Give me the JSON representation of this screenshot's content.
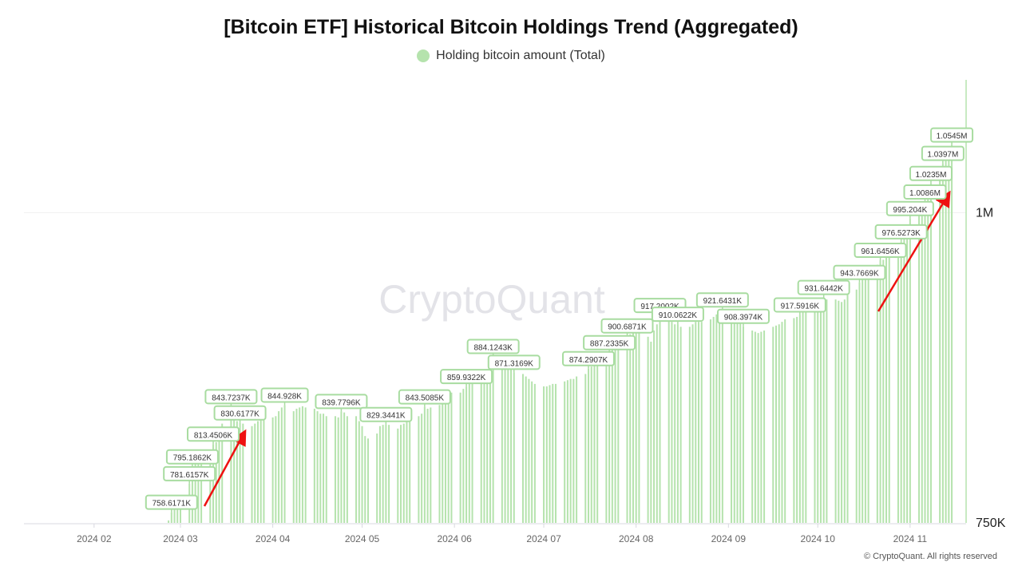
{
  "chart_data": {
    "type": "bar",
    "title": "[Bitcoin ETF] Historical Bitcoin Holdings Trend (Aggregated)",
    "legend": [
      {
        "name": "Holding bitcoin amount (Total)",
        "color": "#b5e3ad"
      }
    ],
    "legend_placement": "top-center",
    "xlabel": "",
    "ylabel": "",
    "x_start_date": "2024-02-26",
    "x_frequency": "weekdays",
    "x_ticks": [
      "2024 02",
      "2024 03",
      "2024 04",
      "2024 05",
      "2024 06",
      "2024 07",
      "2024 08",
      "2024 09",
      "2024 10",
      "2024 11"
    ],
    "y_ticks": [
      {
        "value": 750,
        "label": "750K"
      },
      {
        "value": 1000,
        "label": "1M"
      }
    ],
    "y_unit": "K BTC",
    "ylim": [
      750,
      1107
    ],
    "grid": "horizontal at 1M",
    "values": [
      752,
      758.6,
      766,
      770,
      772,
      781.6,
      795.2,
      798,
      800,
      805,
      808,
      813.5,
      815,
      818,
      830,
      843.7,
      835,
      832,
      830.6,
      830,
      828,
      830,
      832,
      833,
      833,
      835,
      836,
      840,
      843,
      844.9,
      840,
      842,
      843,
      844,
      843,
      842,
      840,
      838,
      838,
      836,
      836,
      835,
      839.8,
      839,
      836,
      836,
      832,
      828,
      820,
      818,
      822,
      828,
      829,
      829.3,
      829,
      826,
      829,
      830,
      832,
      833,
      836,
      838,
      843.5,
      842,
      843,
      845,
      848,
      850,
      852,
      855,
      855,
      858,
      859.9,
      862,
      864,
      866,
      870,
      874,
      880,
      884.1,
      882,
      880,
      878,
      876,
      871.3,
      870,
      868,
      866,
      864,
      862,
      860,
      860,
      861,
      862,
      862,
      864,
      865,
      866,
      866,
      868,
      870,
      874.3,
      876,
      878,
      880,
      882,
      887.2,
      890,
      895,
      898,
      900.7,
      902,
      904,
      905,
      906,
      900,
      896,
      905,
      910,
      917.2,
      914,
      912,
      910,
      910.1,
      908,
      908,
      910,
      912,
      912,
      912,
      914,
      916,
      918,
      920,
      921.6,
      920,
      918,
      916,
      912,
      908.4,
      905,
      904,
      903,
      904,
      905,
      908,
      909,
      910,
      912,
      914,
      915,
      916,
      917.6,
      920,
      922,
      924,
      926,
      928,
      931.6,
      930,
      930,
      929,
      928,
      930,
      935,
      938,
      943.8,
      948,
      952,
      955,
      958,
      961.6,
      962,
      965,
      968,
      972,
      976.5,
      985,
      990,
      995.2,
      998,
      1000,
      1008.6,
      1015,
      1023.5,
      1030,
      1039.7,
      1045,
      1050,
      1054.5
    ],
    "annotations": [
      {
        "index": 1,
        "label": "758.6171K"
      },
      {
        "index": 5,
        "label": "781.6157K"
      },
      {
        "index": 6,
        "label": "795.1862K"
      },
      {
        "index": 11,
        "label": "813.4506K"
      },
      {
        "index": 15,
        "label": "843.7237K"
      },
      {
        "index": 18,
        "label": "830.6177K"
      },
      {
        "index": 29,
        "label": "844.928K"
      },
      {
        "index": 42,
        "label": "839.7796K"
      },
      {
        "index": 53,
        "label": "829.3441K"
      },
      {
        "index": 62,
        "label": "843.5085K"
      },
      {
        "index": 72,
        "label": "859.9322K"
      },
      {
        "index": 79,
        "label": "884.1243K"
      },
      {
        "index": 84,
        "label": "871.3169K"
      },
      {
        "index": 101,
        "label": "874.2907K"
      },
      {
        "index": 106,
        "label": "887.2335K"
      },
      {
        "index": 110,
        "label": "900.6871K"
      },
      {
        "index": 119,
        "label": "917.2002K"
      },
      {
        "index": 123,
        "label": "910.0622K"
      },
      {
        "index": 134,
        "label": "921.6431K"
      },
      {
        "index": 139,
        "label": "908.3974K"
      },
      {
        "index": 152,
        "label": "917.5916K"
      },
      {
        "index": 158,
        "label": "931.6442K"
      },
      {
        "index": 166,
        "label": "943.7669K"
      },
      {
        "index": 171,
        "label": "961.6456K"
      },
      {
        "index": 176,
        "label": "976.5273K"
      },
      {
        "index": 179,
        "label": "995.204K"
      },
      {
        "index": 182,
        "label": "1.0086M"
      },
      {
        "index": 184,
        "label": "1.0235M"
      },
      {
        "index": 186,
        "label": "1.0397M"
      },
      {
        "index": 189,
        "label": "1.0545M"
      }
    ],
    "watermark": "CryptoQuant"
  },
  "copyright": "© CryptoQuant. All rights reserved"
}
